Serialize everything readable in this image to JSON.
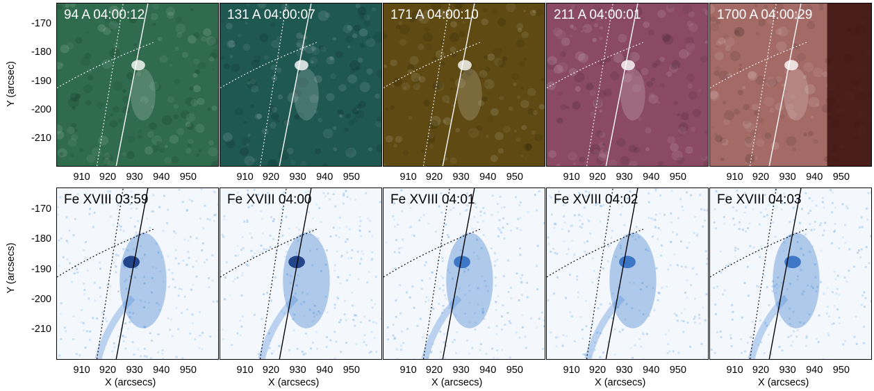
{
  "figure": {
    "top_row": {
      "ylabel": "Y (arcsec)",
      "panels": [
        {
          "title": "94 A 04:00:12",
          "tint": "#2f6b4c"
        },
        {
          "title": "131 A 04:00:07",
          "tint": "#1f5751"
        },
        {
          "title": "171 A 04:00:10",
          "tint": "#5e4a12"
        },
        {
          "title": "211 A 04:00:01",
          "tint": "#8a4a63"
        },
        {
          "title": "1700 A 04:00:29",
          "tint": "#a46b66"
        }
      ]
    },
    "bottom_row": {
      "ylabel": "Y (arcsecs)",
      "xlabel": "X (arcsecs)",
      "panels": [
        {
          "title": "Fe XVIII 03:59"
        },
        {
          "title": "Fe XVIII 04:00"
        },
        {
          "title": "Fe XVIII 04:01"
        },
        {
          "title": "Fe XVIII 04:02"
        },
        {
          "title": "Fe XVIII 04:03"
        }
      ]
    },
    "y_ticks": [
      "-170",
      "-180",
      "-190",
      "-200",
      "-210"
    ],
    "x_ticks": [
      "910",
      "920",
      "930",
      "940",
      "950"
    ]
  }
}
